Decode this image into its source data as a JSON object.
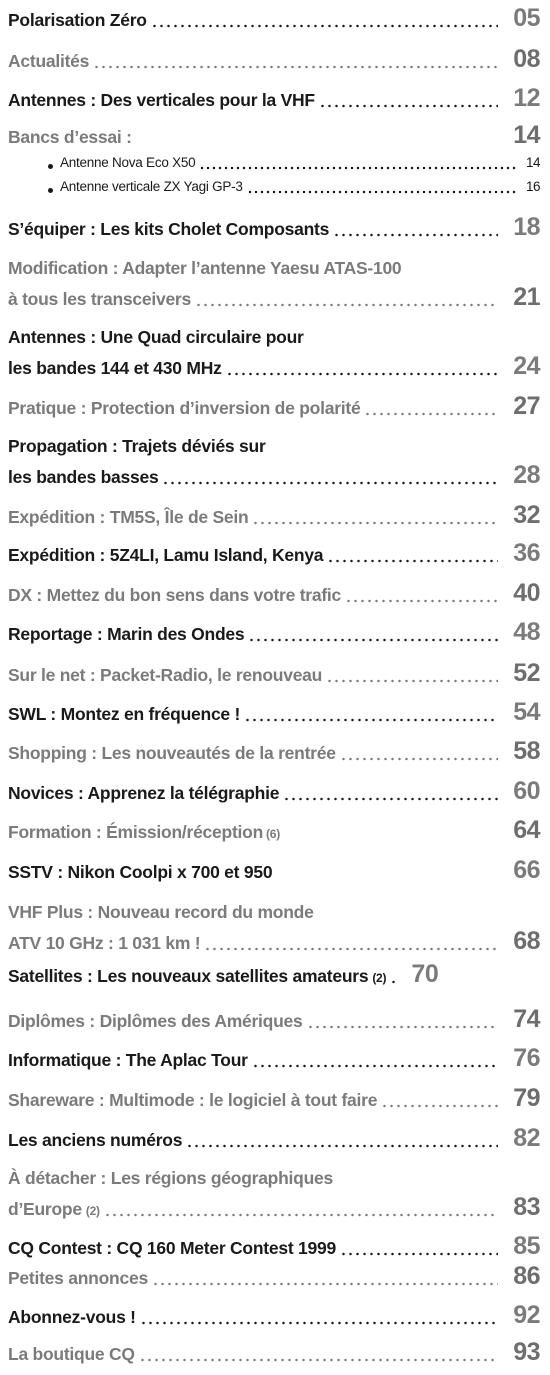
{
  "colors": {
    "dark": "#1a1a1a",
    "grey": "#7b7b7b"
  },
  "entries": [
    {
      "lines": [
        {
          "text": "Polarisation Zéro",
          "page": "05"
        }
      ]
    },
    {
      "lines": [
        {
          "text": "Actualités",
          "page": "08"
        }
      ]
    },
    {
      "lines": [
        {
          "text": "Antennes : Des verticales pour la VHF",
          "page": "12"
        }
      ]
    },
    {
      "lines": [
        {
          "text": "Bancs d’essai :",
          "page": "14"
        }
      ]
    },
    {
      "lines": [
        {
          "text": "Antenne Nova Eco X50",
          "page": "14"
        }
      ]
    },
    {
      "lines": [
        {
          "text": "Antenne verticale ZX Yagi GP-3",
          "page": "16"
        }
      ]
    },
    {
      "lines": [
        {
          "text": "S’équiper : Les kits Cholet Composants",
          "page": "18"
        }
      ]
    },
    {
      "lines": [
        {
          "text": "Modification : Adapter l’antenne Yaesu ATAS-100"
        },
        {
          "text": "à tous les transceivers",
          "page": "21"
        }
      ]
    },
    {
      "lines": [
        {
          "text": "Antennes : Une Quad circulaire pour"
        },
        {
          "text": "les bandes 144 et 430 MHz",
          "page": "24"
        }
      ]
    },
    {
      "lines": [
        {
          "text": "Pratique : Protection d’inversion de polarité",
          "page": "27"
        }
      ]
    },
    {
      "lines": [
        {
          "text": "Propagation : Trajets déviés sur"
        },
        {
          "text": "les bandes basses",
          "page": "28"
        }
      ]
    },
    {
      "lines": [
        {
          "text": "Expédition : TM5S, Île de Sein",
          "page": "32"
        }
      ]
    },
    {
      "lines": [
        {
          "text": "Expédition : 5Z4LI, Lamu Island, Kenya",
          "page": "36"
        }
      ]
    },
    {
      "lines": [
        {
          "text": "DX : Mettez du bon sens dans votre trafic",
          "page": "40"
        }
      ]
    },
    {
      "lines": [
        {
          "text": "Reportage : Marin des Ondes",
          "page": "48"
        }
      ]
    },
    {
      "lines": [
        {
          "text": "Sur le net : Packet-Radio, le renouveau",
          "page": "52"
        }
      ]
    },
    {
      "lines": [
        {
          "text": "SWL : Montez en fréquence !",
          "page": "54"
        }
      ]
    },
    {
      "lines": [
        {
          "text": "Shopping : Les nouveautés de la rentrée",
          "page": "58"
        }
      ]
    },
    {
      "lines": [
        {
          "text": "Novices : Apprenez la télégraphie",
          "page": "60"
        }
      ]
    },
    {
      "lines": [
        {
          "text": "Formation : Émission/réception",
          "suffix": "(6)",
          "page": "64"
        }
      ]
    },
    {
      "lines": [
        {
          "text": "SSTV : Nikon Coolpi x 700 et 950",
          "page": "66"
        }
      ]
    },
    {
      "lines": [
        {
          "text": "VHF Plus : Nouveau record du monde"
        },
        {
          "text": "ATV 10 GHz : 1 031 km !",
          "page": "68"
        }
      ]
    },
    {
      "lines": [
        {
          "text": "Satellites : Les nouveaux satellites amateurs",
          "suffix": "(2)",
          "page": "70"
        }
      ]
    },
    {
      "lines": [
        {
          "text": "Diplômes : Diplômes des Amériques",
          "page": "74"
        }
      ]
    },
    {
      "lines": [
        {
          "text": "Informatique : The Aplac Tour",
          "page": "76"
        }
      ]
    },
    {
      "lines": [
        {
          "text": "Shareware : Multimode : le logiciel à tout faire",
          "page": "79"
        }
      ]
    },
    {
      "lines": [
        {
          "text": "Les anciens numéros",
          "page": "82"
        }
      ]
    },
    {
      "lines": [
        {
          "text": "À détacher : Les régions géographiques"
        },
        {
          "text": "d’Europe",
          "suffix": "(2)",
          "page": "83"
        }
      ]
    },
    {
      "lines": [
        {
          "text": "CQ Contest : CQ 160 Meter Contest 1999",
          "page": "85"
        }
      ]
    },
    {
      "lines": [
        {
          "text": "Petites annonces",
          "page": "86"
        }
      ]
    },
    {
      "lines": [
        {
          "text": "Abonnez-vous !",
          "page": "92"
        }
      ]
    },
    {
      "lines": [
        {
          "text": "La boutique CQ",
          "page": "93"
        }
      ]
    }
  ]
}
